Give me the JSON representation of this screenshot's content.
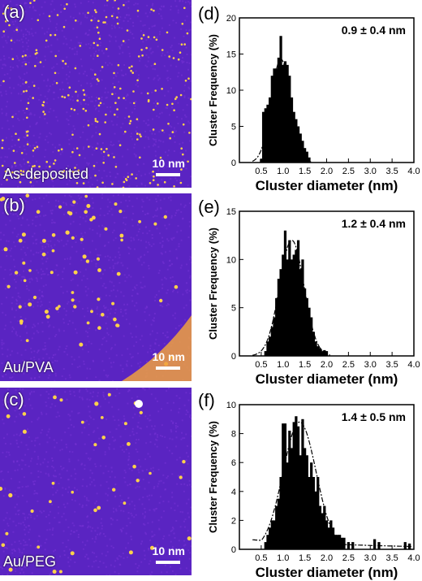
{
  "micrographs": [
    {
      "panel": "(a)",
      "label": "As-deposited",
      "scale_bar": "10 nm"
    },
    {
      "panel": "(b)",
      "label": "Au/PVA",
      "scale_bar": "10 nm"
    },
    {
      "panel": "(c)",
      "label": "Au/PEG",
      "scale_bar": "10 nm"
    }
  ],
  "colors": {
    "background": "#5a24c2",
    "particle": "#ffd24a",
    "bar": "#000000"
  },
  "chart_data": [
    {
      "type": "bar",
      "panel": "(d)",
      "annotation": "0.9 ± 0.4 nm",
      "xlabel": "Cluster diameter (nm)",
      "ylabel": "Cluster Frequency (%)",
      "xlim": [
        0.0,
        4.0
      ],
      "ylim": [
        0,
        20
      ],
      "xticks": [
        "0.5",
        "1.0",
        "1.5",
        "2.0",
        "2.5",
        "3.0",
        "3.5",
        "4.0"
      ],
      "yticks": [
        "0",
        "5",
        "10",
        "15",
        "20"
      ],
      "x": [
        0.5,
        0.55,
        0.6,
        0.65,
        0.7,
        0.75,
        0.8,
        0.85,
        0.9,
        0.95,
        1.0,
        1.05,
        1.1,
        1.15,
        1.2,
        1.25,
        1.3,
        1.35,
        1.4,
        1.45,
        1.5,
        1.55,
        1.6
      ],
      "values": [
        0.5,
        7,
        7.5,
        8,
        9,
        12,
        13,
        13,
        14.5,
        17.5,
        13.5,
        14,
        13.5,
        12,
        9,
        7,
        6,
        5,
        4,
        3,
        2,
        1.5,
        0.7
      ],
      "fit": {
        "mean": 0.95,
        "sigma": 0.22,
        "peak": 14.3
      }
    },
    {
      "type": "bar",
      "panel": "(e)",
      "annotation": "1.2 ± 0.4 nm",
      "xlabel": "Cluster diameter (nm)",
      "ylabel": "Cluster Frequency (%)",
      "xlim": [
        0.0,
        4.0
      ],
      "ylim": [
        0,
        15
      ],
      "xticks": [
        "0.5",
        "1.0",
        "1.5",
        "2.0",
        "2.5",
        "3.0",
        "3.5",
        "4.0"
      ],
      "yticks": [
        "0",
        "5",
        "10",
        "15"
      ],
      "x": [
        0.6,
        0.65,
        0.7,
        0.75,
        0.8,
        0.85,
        0.9,
        0.95,
        1.0,
        1.05,
        1.1,
        1.15,
        1.2,
        1.25,
        1.3,
        1.35,
        1.4,
        1.45,
        1.5,
        1.55,
        1.6,
        1.65,
        1.7,
        1.75,
        1.8,
        1.85,
        1.9,
        1.95,
        2.0
      ],
      "values": [
        0.5,
        1.5,
        2,
        3,
        4,
        6,
        8,
        9,
        10.5,
        13,
        10,
        12,
        10,
        10.5,
        11,
        12,
        9,
        10,
        7,
        6,
        5,
        4,
        2.5,
        1.5,
        1,
        0.8,
        0.5,
        0.6,
        0.5
      ],
      "fit": {
        "mean": 1.2,
        "sigma": 0.28,
        "peak": 12
      }
    },
    {
      "type": "bar",
      "panel": "(f)",
      "annotation": "1.4 ± 0.5 nm",
      "xlabel": "Cluster diameter (nm)",
      "ylabel": "Cluster Frequency (%)",
      "xlim": [
        0.0,
        4.0
      ],
      "ylim": [
        0,
        10
      ],
      "xticks": [
        "0.5",
        "1.0",
        "1.5",
        "2.0",
        "2.5",
        "3.0",
        "3.5",
        "4.0"
      ],
      "yticks": [
        "0",
        "2",
        "4",
        "6",
        "8",
        "10"
      ],
      "x": [
        0.6,
        0.65,
        0.7,
        0.75,
        0.8,
        0.85,
        0.9,
        0.95,
        1.0,
        1.05,
        1.1,
        1.15,
        1.2,
        1.25,
        1.3,
        1.35,
        1.4,
        1.45,
        1.5,
        1.55,
        1.6,
        1.65,
        1.7,
        1.75,
        1.8,
        1.85,
        1.9,
        1.95,
        2.0,
        2.05,
        2.1,
        2.15,
        2.2,
        2.25,
        2.3,
        2.35,
        2.4,
        2.5,
        2.6,
        3.1,
        3.2,
        3.8,
        3.9
      ],
      "values": [
        0.5,
        1,
        1.5,
        2,
        2,
        3,
        3.5,
        5,
        8.7,
        8.7,
        6,
        8.2,
        7,
        8.8,
        9.2,
        8.5,
        6.5,
        9,
        7,
        6.5,
        5,
        6,
        5,
        4,
        5,
        3,
        2.5,
        3,
        2,
        1.5,
        2,
        1.5,
        1,
        1,
        1,
        0.8,
        0.8,
        0.5,
        0.5,
        0.7,
        0.5,
        0.5,
        0.4
      ],
      "fit": {
        "mean": 1.38,
        "sigma": 0.38,
        "peak": 8.8,
        "tail": 0.4
      }
    }
  ]
}
